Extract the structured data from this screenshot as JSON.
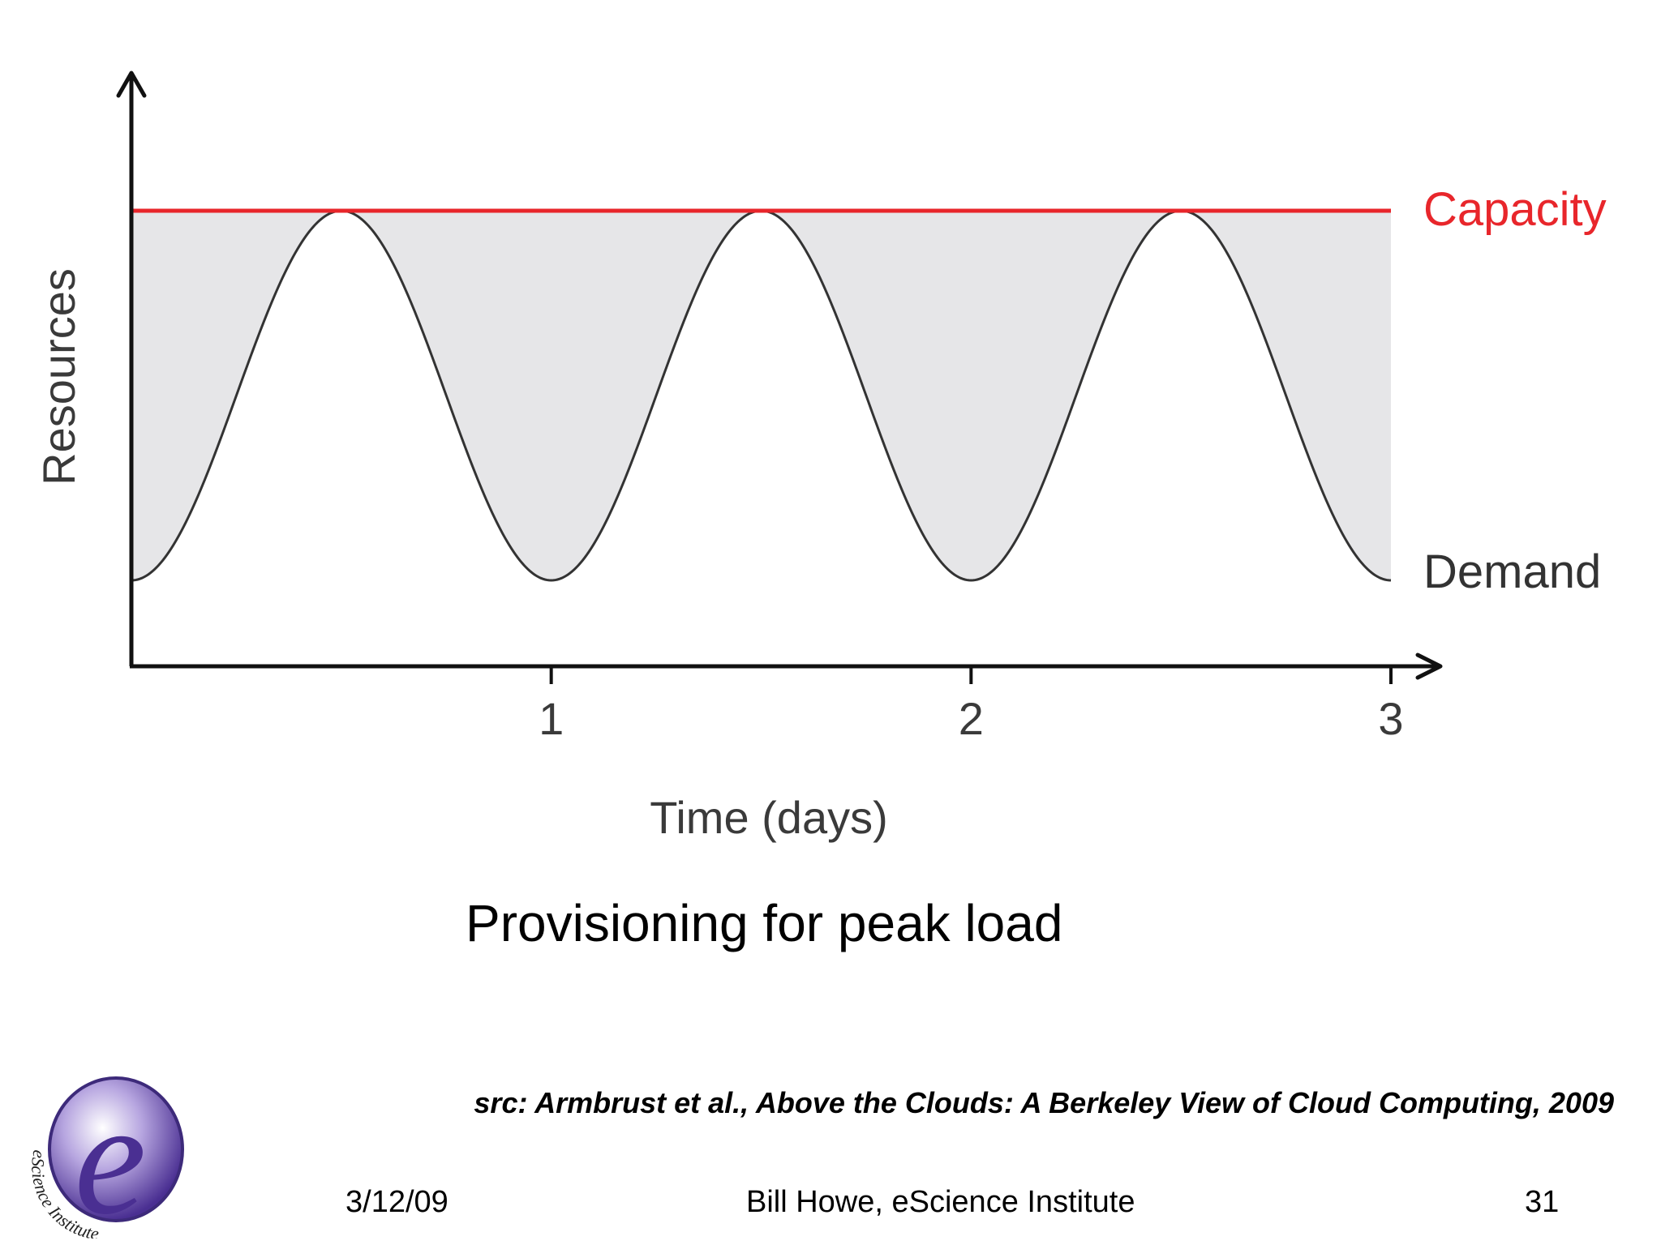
{
  "chart_data": {
    "type": "line",
    "xlabel": "Time (days)",
    "ylabel": "Resources",
    "xlim": [
      0,
      3
    ],
    "x_ticks": [
      "1",
      "2",
      "3"
    ],
    "series": [
      {
        "name": "Capacity",
        "color": "#e8262b",
        "shape": "constant at the peak of Demand",
        "x": [
          0,
          3
        ],
        "y": [
          1.0,
          1.0
        ]
      },
      {
        "name": "Demand",
        "color": "#333333",
        "shape": "periodic wave, one cycle per day, peaks at x = 0.5, 1.5, 2.5, troughs at x = 0, 1, 2, 3",
        "x": [
          0,
          0.5,
          1,
          1.5,
          2,
          2.5,
          3
        ],
        "y": [
          0.0,
          1.0,
          0.0,
          1.0,
          0.0,
          1.0,
          0.0
        ]
      }
    ],
    "shaded_region": "between Demand and Capacity",
    "shaded_color": "#e6e6e8",
    "grid": false,
    "legend": "inline labels at right end of lines"
  },
  "slide": {
    "caption": "Provisioning for peak load",
    "citation": "src: Armbrust et al., Above the Clouds: A Berkeley View of Cloud Computing, 2009",
    "footer_date": "3/12/09",
    "footer_author": "Bill Howe, eScience Institute",
    "footer_page": "31",
    "logo_letter": "e",
    "logo_text": "eScience Institute"
  },
  "colors": {
    "capacity": "#e8262b",
    "demand": "#333333",
    "shade": "#e6e6e8",
    "logo_purple": "#5b3c9e"
  }
}
